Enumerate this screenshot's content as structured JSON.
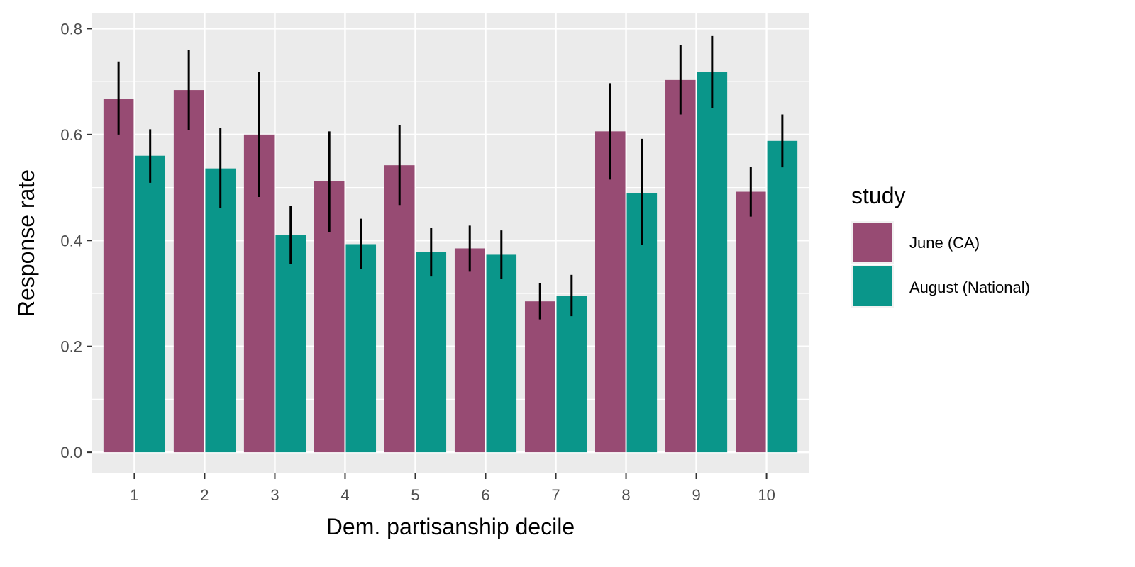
{
  "chart_data": {
    "type": "bar",
    "xlabel": "Dem. partisanship decile",
    "ylabel": "Response rate",
    "categories": [
      "1",
      "2",
      "3",
      "4",
      "5",
      "6",
      "7",
      "8",
      "9",
      "10"
    ],
    "ylim": [
      -0.04,
      0.83
    ],
    "yticks": [
      "0.0",
      "0.2",
      "0.4",
      "0.6",
      "0.8"
    ],
    "ytick_values": [
      0.0,
      0.2,
      0.4,
      0.6,
      0.8
    ],
    "grid": true,
    "legend_position": "right",
    "legend_title": "study",
    "series": [
      {
        "name": "June (CA)",
        "color": "#974b73",
        "values": [
          0.668,
          0.684,
          0.6,
          0.512,
          0.542,
          0.385,
          0.285,
          0.606,
          0.703,
          0.492
        ],
        "err_low": [
          0.6,
          0.608,
          0.482,
          0.416,
          0.467,
          0.341,
          0.251,
          0.515,
          0.638,
          0.445
        ],
        "err_high": [
          0.738,
          0.759,
          0.718,
          0.606,
          0.618,
          0.428,
          0.32,
          0.697,
          0.769,
          0.539
        ]
      },
      {
        "name": "August (National)",
        "color": "#0a968a",
        "values": [
          0.56,
          0.536,
          0.41,
          0.393,
          0.378,
          0.373,
          0.295,
          0.49,
          0.718,
          0.588
        ],
        "err_low": [
          0.509,
          0.462,
          0.356,
          0.346,
          0.332,
          0.328,
          0.257,
          0.391,
          0.65,
          0.538
        ],
        "err_high": [
          0.61,
          0.612,
          0.466,
          0.441,
          0.424,
          0.419,
          0.335,
          0.592,
          0.786,
          0.638
        ]
      }
    ]
  }
}
